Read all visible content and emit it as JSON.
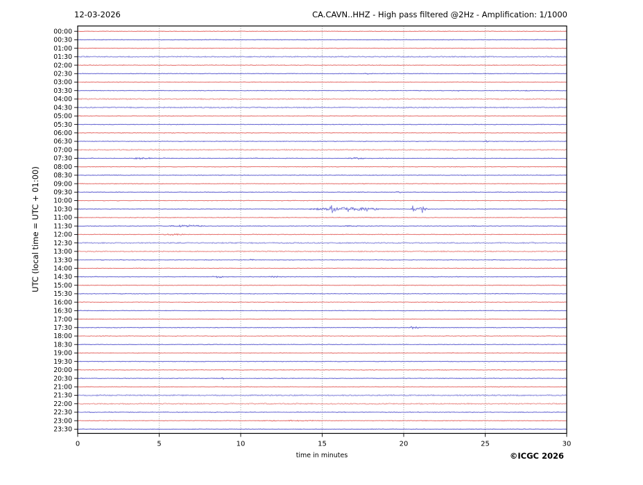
{
  "header": {
    "date": "12-03-2026",
    "title": "CA.CAVN..HHZ - High pass filtered @2Hz - Amplification: 1/1000"
  },
  "footer": {
    "copyright": "©ICGC 2026"
  },
  "chart_data": {
    "type": "line",
    "subtype": "helicorder-seismogram",
    "station": "CA.CAVN..HHZ",
    "filter": "High pass filtered @2Hz",
    "amplification": "1/1000",
    "date": "12-03-2026",
    "xlabel": "time in minutes",
    "ylabel": "UTC (local time = UTC + 01:00)",
    "x_range": [
      0,
      30
    ],
    "x_ticks": [
      0,
      5,
      10,
      15,
      20,
      25,
      30
    ],
    "grid_minutes": [
      5,
      10,
      15,
      20,
      25
    ],
    "grid_on": true,
    "row_interval_minutes": 30,
    "trace_colors": {
      "red": "#e0524d",
      "blue": "#4343c8"
    },
    "grid_color": "#8a8a8a",
    "rows": [
      {
        "t": "00:00",
        "c": "red"
      },
      {
        "t": "00:30",
        "c": "blue"
      },
      {
        "t": "01:00",
        "c": "red"
      },
      {
        "t": "01:30",
        "c": "blue",
        "soft": true
      },
      {
        "t": "02:00",
        "c": "red"
      },
      {
        "t": "02:30",
        "c": "blue"
      },
      {
        "t": "03:00",
        "c": "red"
      },
      {
        "t": "03:30",
        "c": "blue"
      },
      {
        "t": "04:00",
        "c": "red",
        "soft": true
      },
      {
        "t": "04:30",
        "c": "blue",
        "soft": true
      },
      {
        "t": "05:00",
        "c": "red"
      },
      {
        "t": "05:30",
        "c": "blue"
      },
      {
        "t": "06:00",
        "c": "red"
      },
      {
        "t": "06:30",
        "c": "blue"
      },
      {
        "t": "07:00",
        "c": "red",
        "soft": true
      },
      {
        "t": "07:30",
        "c": "blue"
      },
      {
        "t": "08:00",
        "c": "red"
      },
      {
        "t": "08:30",
        "c": "blue"
      },
      {
        "t": "09:00",
        "c": "red"
      },
      {
        "t": "09:30",
        "c": "blue"
      },
      {
        "t": "10:00",
        "c": "red"
      },
      {
        "t": "10:30",
        "c": "blue"
      },
      {
        "t": "11:00",
        "c": "red"
      },
      {
        "t": "11:30",
        "c": "blue"
      },
      {
        "t": "12:00",
        "c": "red"
      },
      {
        "t": "12:30",
        "c": "blue",
        "soft": true
      },
      {
        "t": "13:00",
        "c": "red",
        "soft": true
      },
      {
        "t": "13:30",
        "c": "blue"
      },
      {
        "t": "14:00",
        "c": "red"
      },
      {
        "t": "14:30",
        "c": "blue"
      },
      {
        "t": "15:00",
        "c": "red"
      },
      {
        "t": "15:30",
        "c": "blue"
      },
      {
        "t": "16:00",
        "c": "red"
      },
      {
        "t": "16:30",
        "c": "blue"
      },
      {
        "t": "17:00",
        "c": "red"
      },
      {
        "t": "17:30",
        "c": "blue"
      },
      {
        "t": "18:00",
        "c": "red"
      },
      {
        "t": "18:30",
        "c": "blue"
      },
      {
        "t": "19:00",
        "c": "red"
      },
      {
        "t": "19:30",
        "c": "blue"
      },
      {
        "t": "20:00",
        "c": "red"
      },
      {
        "t": "20:30",
        "c": "blue"
      },
      {
        "t": "21:00",
        "c": "red"
      },
      {
        "t": "21:30",
        "c": "blue",
        "soft": true
      },
      {
        "t": "22:00",
        "c": "red",
        "soft": true
      },
      {
        "t": "22:30",
        "c": "blue"
      },
      {
        "t": "23:00",
        "c": "red"
      },
      {
        "t": "23:30",
        "c": "blue"
      }
    ],
    "events": [
      {
        "row": "02:30",
        "start": 17.6,
        "end": 17.95,
        "amp": 1.5
      },
      {
        "row": "03:30",
        "start": 23.1,
        "end": 23.45,
        "amp": 1.3
      },
      {
        "row": "03:30",
        "start": 27.4,
        "end": 27.8,
        "amp": 1.2
      },
      {
        "row": "06:30",
        "start": 24.8,
        "end": 25.2,
        "amp": 1.6
      },
      {
        "row": "07:30",
        "start": 3.3,
        "end": 4.7,
        "amp": 1.7
      },
      {
        "row": "07:30",
        "start": 16.5,
        "end": 17.8,
        "amp": 1.5
      },
      {
        "row": "09:30",
        "start": 19.5,
        "end": 19.9,
        "amp": 1.3
      },
      {
        "row": "10:30",
        "start": 14.2,
        "end": 18.8,
        "amp": 2.6,
        "spikes": [
          [
            15.55,
            13
          ],
          [
            15.8,
            5.5
          ],
          [
            16.35,
            4
          ],
          [
            16.6,
            4.5
          ],
          [
            16.9,
            3.5
          ],
          [
            17.5,
            5
          ],
          [
            17.75,
            4
          ]
        ]
      },
      {
        "row": "10:30",
        "start": 20.35,
        "end": 21.55,
        "amp": 2.4,
        "spikes": [
          [
            20.55,
            6
          ],
          [
            20.8,
            4.5
          ],
          [
            21.15,
            6
          ],
          [
            21.35,
            4
          ]
        ]
      },
      {
        "row": "11:30",
        "start": 5.6,
        "end": 7.8,
        "amp": 1.7
      },
      {
        "row": "11:30",
        "start": 16.2,
        "end": 17.5,
        "amp": 1.2
      },
      {
        "row": "11:30",
        "start": 23.8,
        "end": 24.8,
        "amp": 1.2
      },
      {
        "row": "12:00",
        "start": 5.2,
        "end": 6.6,
        "amp": 1.4
      },
      {
        "row": "12:30",
        "start": 10.2,
        "end": 11.6,
        "amp": 1.3
      },
      {
        "row": "12:30",
        "start": 27.2,
        "end": 28.6,
        "amp": 1.8
      },
      {
        "row": "13:30",
        "start": 10.4,
        "end": 10.9,
        "amp": 1.4
      },
      {
        "row": "14:30",
        "start": 8.2,
        "end": 9.0,
        "amp": 1.7
      },
      {
        "row": "14:30",
        "start": 11.6,
        "end": 12.6,
        "amp": 1.2
      },
      {
        "row": "17:30",
        "start": 20.2,
        "end": 21.05,
        "amp": 1.8,
        "spikes": [
          [
            20.5,
            3.8
          ],
          [
            20.68,
            3.2
          ]
        ]
      },
      {
        "row": "20:30",
        "start": 8.7,
        "end": 9.1,
        "amp": 1.6
      },
      {
        "row": "23:00",
        "start": 10.5,
        "end": 16.0,
        "amp": 1.0
      }
    ]
  }
}
